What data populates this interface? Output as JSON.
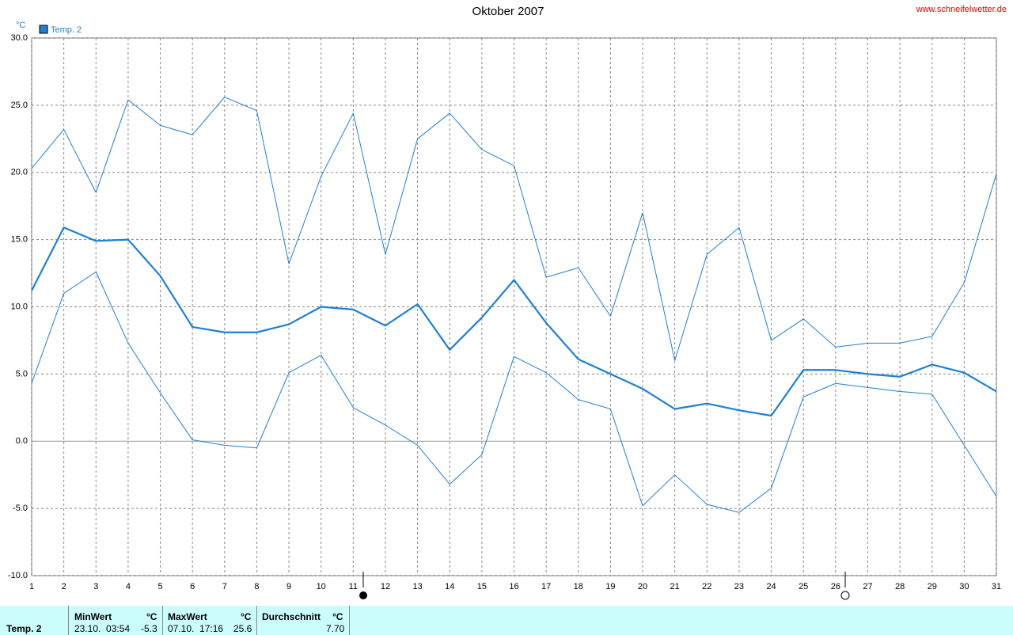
{
  "chart_data": {
    "type": "line",
    "title": "Oktober 2007",
    "y_unit": "°C",
    "source": "www.schneifelwetter.de",
    "x": [
      1,
      2,
      3,
      4,
      5,
      6,
      7,
      8,
      9,
      10,
      11,
      12,
      13,
      14,
      15,
      16,
      17,
      18,
      19,
      20,
      21,
      22,
      23,
      24,
      25,
      26,
      27,
      28,
      29,
      30,
      31
    ],
    "xlim": [
      1,
      31
    ],
    "xticks": [
      1,
      2,
      3,
      4,
      5,
      6,
      7,
      8,
      9,
      10,
      11,
      12,
      13,
      14,
      15,
      16,
      17,
      18,
      19,
      20,
      21,
      22,
      23,
      24,
      25,
      26,
      27,
      28,
      29,
      30,
      31
    ],
    "ylim": [
      -10,
      30
    ],
    "yticks": [
      {
        "value": -10,
        "label": "-10.0"
      },
      {
        "value": -5,
        "label": "-5.0"
      },
      {
        "value": 0,
        "label": "0.0"
      },
      {
        "value": 5,
        "label": "5.0"
      },
      {
        "value": 10,
        "label": "10.0"
      },
      {
        "value": 15,
        "label": "15.0"
      },
      {
        "value": 20,
        "label": "20.0"
      },
      {
        "value": 25,
        "label": "25.0"
      },
      {
        "value": 30,
        "label": "30.0"
      }
    ],
    "grid": true,
    "series": [
      {
        "name": "Temp. 2",
        "color": "#1e7fd8",
        "width": 2.2,
        "values": [
          11.2,
          15.9,
          14.9,
          15.0,
          12.3,
          8.5,
          8.1,
          8.1,
          8.7,
          10.0,
          9.8,
          8.6,
          10.2,
          6.8,
          9.2,
          12.0,
          8.8,
          6.1,
          5.0,
          3.9,
          2.4,
          2.8,
          2.3,
          1.9,
          5.3,
          5.3,
          5.0,
          4.8,
          5.7,
          5.1,
          3.7
        ]
      },
      {
        "color": "#1e7fd8",
        "width": 1,
        "values": [
          20.3,
          23.2,
          18.5,
          25.4,
          23.5,
          22.8,
          25.6,
          24.6,
          13.2,
          19.7,
          24.4,
          13.9,
          22.5,
          24.4,
          21.7,
          20.5,
          12.2,
          12.9,
          9.3,
          17.0,
          6.0,
          13.9,
          15.9,
          7.5,
          9.1,
          7.0,
          7.3,
          7.3,
          7.8,
          11.8,
          19.9
        ]
      },
      {
        "color": "#1e7fd8",
        "width": 1,
        "values": [
          4.3,
          11.0,
          12.6,
          7.3,
          3.6,
          0.1,
          -0.3,
          -0.5,
          5.1,
          6.4,
          2.5,
          1.2,
          -0.3,
          -3.2,
          -1.0,
          6.3,
          5.1,
          3.1,
          2.4,
          -4.8,
          -2.5,
          -4.7,
          -5.3,
          -3.5,
          3.3,
          4.3,
          4.0,
          3.7,
          3.5,
          -0.3,
          -4.1
        ]
      }
    ]
  },
  "summary": {
    "series": "Temp. 2",
    "min": {
      "label": "MinWert",
      "unit": "°C",
      "time": "23.10.  03:54",
      "value": "-5.3"
    },
    "max": {
      "label": "MaxWert",
      "unit": "°C",
      "time": "07.10.  17:16",
      "value": "25.6"
    },
    "avg": {
      "label": "Durchschnitt",
      "unit": "°C",
      "value": "7.70"
    }
  }
}
